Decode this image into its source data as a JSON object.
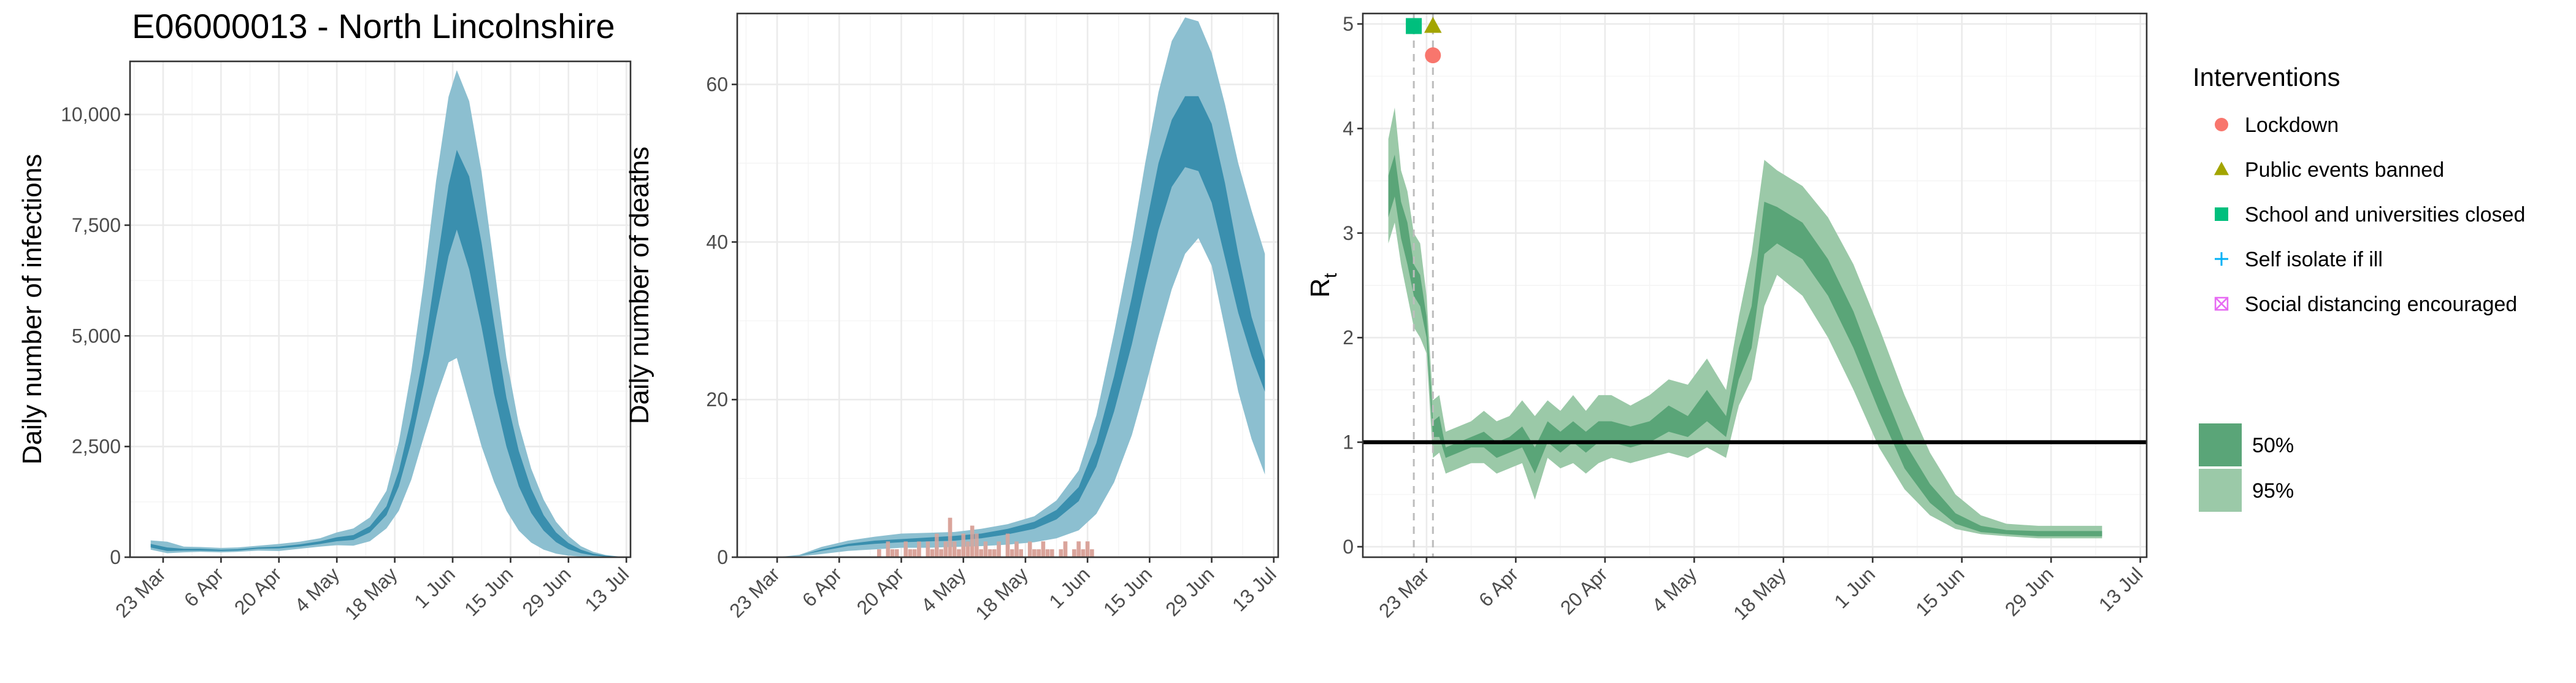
{
  "figure_title": "E06000013 - North Lincolnshire",
  "colors": {
    "infections_50": "#3a8fae",
    "infections_95": "#8cbfd0",
    "deaths_observed": "#d9a49b",
    "rt_50": "#5aa578",
    "rt_95": "#9bc9a8",
    "reference_line": "#000000",
    "lockdown": "#f8766d",
    "public_events": "#a3a500",
    "schools": "#00bf7d",
    "self_isolate": "#00b0f6",
    "social_distancing": "#e76bf3"
  },
  "legend": {
    "interventions_title": "Interventions",
    "interventions": [
      {
        "label": "Lockdown",
        "icon": "circle-icon",
        "color": "#f8766d"
      },
      {
        "label": "Public events banned",
        "icon": "triangle-icon",
        "color": "#a3a500"
      },
      {
        "label": "School and universities closed",
        "icon": "square-icon",
        "color": "#00bf7d"
      },
      {
        "label": "Self isolate if ill",
        "icon": "plus-icon",
        "color": "#00b0f6"
      },
      {
        "label": "Social distancing encouraged",
        "icon": "boxed-x-icon",
        "color": "#e76bf3"
      }
    ],
    "intervals": [
      {
        "label": "50%",
        "color": "#5aa578"
      },
      {
        "label": "95%",
        "color": "#9bc9a8"
      }
    ]
  },
  "chart_data": [
    {
      "type": "area",
      "id": "infections",
      "title": "E06000013 - North Lincolnshire",
      "ylabel": "Daily number of infections",
      "xlabel": "",
      "x_axis": "date",
      "xlim": [
        "2020-03-15",
        "2020-07-14"
      ],
      "ylim": [
        0,
        11200
      ],
      "yticks": [
        0,
        2500,
        5000,
        7500,
        10000
      ],
      "ytick_labels": [
        "0",
        "2,500",
        "5,000",
        "7,500",
        "10,000"
      ],
      "xticks": [
        "2020-03-23",
        "2020-04-06",
        "2020-04-20",
        "2020-05-04",
        "2020-05-18",
        "2020-06-01",
        "2020-06-15",
        "2020-06-29",
        "2020-07-13"
      ],
      "xtick_labels": [
        "23 Mar",
        "6 Apr",
        "20 Apr",
        "4 May",
        "18 May",
        "1 Jun",
        "15 Jun",
        "29 Jun",
        "13 Jul"
      ],
      "grid": true,
      "series": [
        {
          "name": "95%",
          "dates": [
            "2020-03-20",
            "2020-03-24",
            "2020-03-28",
            "2020-04-01",
            "2020-04-06",
            "2020-04-10",
            "2020-04-15",
            "2020-04-20",
            "2020-04-25",
            "2020-04-30",
            "2020-05-04",
            "2020-05-08",
            "2020-05-12",
            "2020-05-16",
            "2020-05-19",
            "2020-05-22",
            "2020-05-25",
            "2020-05-28",
            "2020-05-31",
            "2020-06-02",
            "2020-06-05",
            "2020-06-08",
            "2020-06-11",
            "2020-06-14",
            "2020-06-17",
            "2020-06-20",
            "2020-06-23",
            "2020-06-26",
            "2020-06-29",
            "2020-07-02",
            "2020-07-05",
            "2020-07-08",
            "2020-07-11"
          ],
          "lower": [
            170,
            90,
            110,
            120,
            110,
            120,
            150,
            140,
            190,
            240,
            270,
            260,
            360,
            650,
            1050,
            1750,
            2700,
            3600,
            4400,
            4500,
            3500,
            2500,
            1700,
            1050,
            600,
            330,
            170,
            80,
            35,
            15,
            5,
            2,
            0
          ],
          "upper": [
            380,
            350,
            240,
            230,
            210,
            220,
            260,
            300,
            350,
            430,
            560,
            650,
            900,
            1500,
            2600,
            4200,
            6200,
            8500,
            10400,
            11000,
            10300,
            8700,
            6600,
            4500,
            3000,
            2000,
            1300,
            800,
            480,
            250,
            120,
            50,
            20
          ]
        },
        {
          "name": "50%",
          "dates": [
            "2020-03-20",
            "2020-03-24",
            "2020-03-28",
            "2020-04-01",
            "2020-04-06",
            "2020-04-10",
            "2020-04-15",
            "2020-04-20",
            "2020-04-25",
            "2020-04-30",
            "2020-05-04",
            "2020-05-08",
            "2020-05-12",
            "2020-05-16",
            "2020-05-19",
            "2020-05-22",
            "2020-05-25",
            "2020-05-28",
            "2020-05-31",
            "2020-06-02",
            "2020-06-05",
            "2020-06-08",
            "2020-06-11",
            "2020-06-14",
            "2020-06-17",
            "2020-06-20",
            "2020-06-23",
            "2020-06-26",
            "2020-06-29",
            "2020-07-02",
            "2020-07-05",
            "2020-07-08",
            "2020-07-11"
          ],
          "lower": [
            220,
            140,
            150,
            150,
            140,
            150,
            190,
            200,
            240,
            300,
            360,
            390,
            560,
            950,
            1600,
            2600,
            3900,
            5400,
            6800,
            7400,
            6500,
            5200,
            3700,
            2500,
            1600,
            1000,
            600,
            340,
            180,
            90,
            40,
            15,
            5
          ],
          "upper": [
            300,
            220,
            190,
            190,
            170,
            180,
            220,
            240,
            290,
            360,
            450,
            500,
            700,
            1150,
            1950,
            3150,
            4600,
            6500,
            8400,
            9200,
            8600,
            7100,
            5300,
            3600,
            2400,
            1550,
            950,
            560,
            320,
            170,
            80,
            35,
            12
          ]
        }
      ]
    },
    {
      "type": "area",
      "id": "deaths",
      "title": "",
      "ylabel": "Daily number of deaths",
      "xlabel": "",
      "x_axis": "date",
      "xlim": [
        "2020-03-14",
        "2020-07-14"
      ],
      "ylim": [
        0,
        69
      ],
      "yticks": [
        0,
        20,
        40,
        60
      ],
      "ytick_labels": [
        "0",
        "20",
        "40",
        "60"
      ],
      "xticks": [
        "2020-03-23",
        "2020-04-06",
        "2020-04-20",
        "2020-05-04",
        "2020-05-18",
        "2020-06-01",
        "2020-06-15",
        "2020-06-29",
        "2020-07-13"
      ],
      "xtick_labels": [
        "23 Mar",
        "6 Apr",
        "20 Apr",
        "4 May",
        "18 May",
        "1 Jun",
        "15 Jun",
        "29 Jun",
        "13 Jul"
      ],
      "grid": true,
      "observed_deaths": {
        "start_date": "2020-04-15",
        "values": [
          1,
          0,
          2,
          1,
          1,
          0,
          2,
          1,
          1,
          2,
          0,
          2,
          1,
          3,
          1,
          2,
          5,
          2,
          1,
          3,
          2,
          4,
          3,
          1,
          2,
          1,
          1,
          2,
          0,
          3,
          1,
          2,
          1,
          0,
          2,
          1,
          1,
          2,
          1,
          1,
          0,
          1,
          2,
          0,
          1,
          2,
          1,
          2,
          1
        ]
      },
      "series": [
        {
          "name": "95%",
          "dates": [
            "2020-03-23",
            "2020-03-28",
            "2020-04-02",
            "2020-04-08",
            "2020-04-14",
            "2020-04-20",
            "2020-04-26",
            "2020-05-02",
            "2020-05-08",
            "2020-05-14",
            "2020-05-20",
            "2020-05-25",
            "2020-05-30",
            "2020-06-03",
            "2020-06-07",
            "2020-06-11",
            "2020-06-14",
            "2020-06-17",
            "2020-06-20",
            "2020-06-23",
            "2020-06-26",
            "2020-06-29",
            "2020-07-02",
            "2020-07-05",
            "2020-07-08",
            "2020-07-11"
          ],
          "lower": [
            0,
            0.1,
            0.4,
            0.8,
            1.0,
            1.2,
            1.2,
            1.3,
            1.4,
            1.6,
            1.9,
            2.4,
            3.4,
            5.5,
            9.5,
            15.5,
            21.5,
            28,
            34,
            38.5,
            40.5,
            37,
            29,
            21,
            15,
            10.5
          ],
          "upper": [
            0,
            0.3,
            1.3,
            2.1,
            2.6,
            3.0,
            3.1,
            3.2,
            3.6,
            4.2,
            5.2,
            7.2,
            11,
            18,
            28.5,
            40,
            50,
            59,
            65.5,
            68.5,
            68,
            64,
            57.5,
            50,
            44,
            38.5
          ]
        },
        {
          "name": "50%",
          "dates": [
            "2020-03-23",
            "2020-03-28",
            "2020-04-02",
            "2020-04-08",
            "2020-04-14",
            "2020-04-20",
            "2020-04-26",
            "2020-05-02",
            "2020-05-08",
            "2020-05-14",
            "2020-05-20",
            "2020-05-25",
            "2020-05-30",
            "2020-06-03",
            "2020-06-07",
            "2020-06-11",
            "2020-06-14",
            "2020-06-17",
            "2020-06-20",
            "2020-06-23",
            "2020-06-26",
            "2020-06-29",
            "2020-07-02",
            "2020-07-05",
            "2020-07-08",
            "2020-07-11"
          ],
          "lower": [
            0,
            0.2,
            0.8,
            1.4,
            1.7,
            1.9,
            2.0,
            2.1,
            2.4,
            2.9,
            3.6,
            4.8,
            7.1,
            11.5,
            18.5,
            27,
            34.5,
            41.5,
            47,
            49.5,
            49,
            45,
            38,
            31,
            25.5,
            21
          ],
          "upper": [
            0,
            0.2,
            1.0,
            1.7,
            2.1,
            2.3,
            2.5,
            2.7,
            3.0,
            3.6,
            4.5,
            6.0,
            8.9,
            14.5,
            23,
            33,
            41.5,
            50,
            55.5,
            58.5,
            58.5,
            55,
            47.5,
            38.5,
            30.5,
            25
          ]
        }
      ]
    },
    {
      "type": "area",
      "id": "rt",
      "title": "",
      "ylabel": "R",
      "ylabel_subscript": "t",
      "xlabel": "",
      "x_axis": "date",
      "xlim": [
        "2020-03-13",
        "2020-07-14"
      ],
      "ylim": [
        -0.1,
        5.1
      ],
      "yticks": [
        0,
        1,
        2,
        3,
        4,
        5
      ],
      "ytick_labels": [
        "0",
        "1",
        "2",
        "3",
        "4",
        "5"
      ],
      "xticks": [
        "2020-03-23",
        "2020-04-06",
        "2020-04-20",
        "2020-05-04",
        "2020-05-18",
        "2020-06-01",
        "2020-06-15",
        "2020-06-29",
        "2020-07-13"
      ],
      "xtick_labels": [
        "23 Mar",
        "6 Apr",
        "20 Apr",
        "4 May",
        "18 May",
        "1 Jun",
        "15 Jun",
        "29 Jun",
        "13 Jul"
      ],
      "grid": true,
      "reference_line": 1,
      "intervention_lines": [
        "2020-03-21",
        "2020-03-24"
      ],
      "intervention_markers": [
        {
          "label": "School and universities closed",
          "date": "2020-03-21",
          "y": 4.98
        },
        {
          "label": "Public events banned",
          "date": "2020-03-24",
          "y": 4.98
        },
        {
          "label": "Lockdown",
          "date": "2020-03-24",
          "y": 4.7
        }
      ],
      "series": [
        {
          "name": "95%",
          "dates": [
            "2020-03-17",
            "2020-03-18",
            "2020-03-19",
            "2020-03-20",
            "2020-03-21",
            "2020-03-22",
            "2020-03-23",
            "2020-03-24",
            "2020-03-25",
            "2020-03-26",
            "2020-03-28",
            "2020-03-30",
            "2020-04-01",
            "2020-04-03",
            "2020-04-05",
            "2020-04-07",
            "2020-04-09",
            "2020-04-11",
            "2020-04-13",
            "2020-04-15",
            "2020-04-17",
            "2020-04-19",
            "2020-04-21",
            "2020-04-24",
            "2020-04-27",
            "2020-04-30",
            "2020-05-03",
            "2020-05-06",
            "2020-05-09",
            "2020-05-11",
            "2020-05-13",
            "2020-05-15",
            "2020-05-17",
            "2020-05-21",
            "2020-05-25",
            "2020-05-29",
            "2020-06-02",
            "2020-06-06",
            "2020-06-10",
            "2020-06-14",
            "2020-06-18",
            "2020-06-22",
            "2020-06-27",
            "2020-07-02",
            "2020-07-07"
          ],
          "lower": [
            2.9,
            3.1,
            2.7,
            2.4,
            2.1,
            2.0,
            1.85,
            0.85,
            0.9,
            0.7,
            0.75,
            0.8,
            0.8,
            0.7,
            0.75,
            0.8,
            0.45,
            0.85,
            0.75,
            0.8,
            0.7,
            0.8,
            0.85,
            0.8,
            0.85,
            0.9,
            0.85,
            0.95,
            0.85,
            1.35,
            1.6,
            2.3,
            2.6,
            2.4,
            2.0,
            1.5,
            0.95,
            0.55,
            0.3,
            0.17,
            0.12,
            0.1,
            0.08,
            0.08,
            0.08
          ],
          "upper": [
            3.9,
            4.2,
            3.6,
            3.4,
            3.0,
            2.9,
            2.4,
            1.4,
            1.45,
            1.1,
            1.15,
            1.2,
            1.3,
            1.2,
            1.25,
            1.4,
            1.25,
            1.4,
            1.3,
            1.45,
            1.3,
            1.45,
            1.45,
            1.35,
            1.45,
            1.6,
            1.55,
            1.8,
            1.5,
            2.2,
            2.8,
            3.7,
            3.6,
            3.45,
            3.15,
            2.7,
            2.1,
            1.45,
            0.9,
            0.5,
            0.3,
            0.22,
            0.2,
            0.2,
            0.2
          ]
        },
        {
          "name": "50%",
          "dates": [
            "2020-03-17",
            "2020-03-18",
            "2020-03-19",
            "2020-03-20",
            "2020-03-21",
            "2020-03-22",
            "2020-03-23",
            "2020-03-24",
            "2020-03-25",
            "2020-03-26",
            "2020-03-28",
            "2020-03-30",
            "2020-04-01",
            "2020-04-03",
            "2020-04-05",
            "2020-04-07",
            "2020-04-09",
            "2020-04-11",
            "2020-04-13",
            "2020-04-15",
            "2020-04-17",
            "2020-04-19",
            "2020-04-21",
            "2020-04-24",
            "2020-04-27",
            "2020-04-30",
            "2020-05-03",
            "2020-05-06",
            "2020-05-09",
            "2020-05-11",
            "2020-05-13",
            "2020-05-15",
            "2020-05-17",
            "2020-05-21",
            "2020-05-25",
            "2020-05-29",
            "2020-06-02",
            "2020-06-06",
            "2020-06-10",
            "2020-06-14",
            "2020-06-18",
            "2020-06-22",
            "2020-06-27",
            "2020-07-02",
            "2020-07-07"
          ],
          "lower": [
            3.15,
            3.35,
            2.95,
            2.7,
            2.4,
            2.3,
            2.0,
            1.05,
            1.05,
            0.85,
            0.9,
            0.95,
            0.95,
            0.85,
            0.9,
            0.95,
            0.7,
            1.0,
            0.9,
            1.0,
            0.9,
            1.0,
            1.0,
            0.95,
            1.0,
            1.1,
            1.05,
            1.2,
            1.05,
            1.6,
            1.9,
            2.8,
            2.9,
            2.75,
            2.4,
            1.9,
            1.3,
            0.75,
            0.42,
            0.22,
            0.14,
            0.12,
            0.1,
            0.1,
            0.1
          ],
          "upper": [
            3.55,
            3.75,
            3.3,
            3.1,
            2.7,
            2.6,
            2.2,
            1.2,
            1.25,
            0.95,
            1.0,
            1.05,
            1.1,
            1.0,
            1.05,
            1.15,
            0.95,
            1.2,
            1.1,
            1.2,
            1.1,
            1.2,
            1.2,
            1.15,
            1.2,
            1.35,
            1.25,
            1.5,
            1.25,
            1.9,
            2.3,
            3.3,
            3.25,
            3.1,
            2.75,
            2.25,
            1.6,
            1.0,
            0.6,
            0.32,
            0.2,
            0.16,
            0.15,
            0.15,
            0.15
          ]
        }
      ]
    }
  ]
}
